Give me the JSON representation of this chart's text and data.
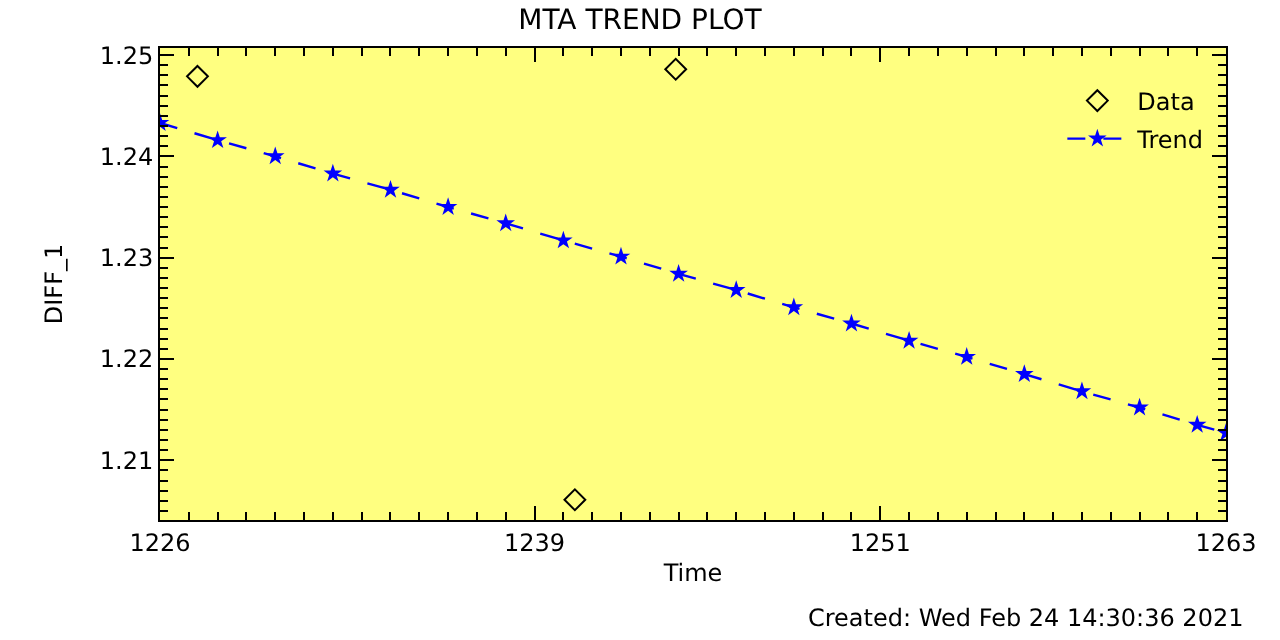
{
  "chart_data": {
    "type": "scatter",
    "title": "MTA TREND PLOT",
    "xlabel": "Time",
    "ylabel": "DIFF_1",
    "annotations": [
      "Created: Wed Feb 24 14:30:36 2021"
    ],
    "xlim": [
      1226,
      1263
    ],
    "xticks": [
      1226,
      1239,
      1251,
      1263
    ],
    "ylim": [
      1.2041,
      1.2507
    ],
    "yticks": [
      1.21,
      1.22,
      1.23,
      1.24,
      1.25
    ],
    "grid": false,
    "legend": "top right",
    "series": [
      {
        "name": "Data",
        "color": "#000000",
        "marker": "diamond",
        "x": [
          1227.3,
          1240.4,
          1243.9
        ],
        "values": [
          1.2479,
          1.2061,
          1.2486
        ]
      },
      {
        "name": "Trend",
        "type": "line",
        "color": "#0000ff",
        "marker": "star",
        "line_style": "dashed",
        "x": [
          1226,
          1228,
          1230,
          1232,
          1234,
          1236,
          1238,
          1240,
          1242,
          1244,
          1246,
          1248,
          1250,
          1252,
          1254,
          1256,
          1258,
          1260,
          1262,
          1263
        ],
        "values": [
          1.2433,
          1.2416,
          1.24,
          1.2383,
          1.2367,
          1.235,
          1.2334,
          1.2317,
          1.2301,
          1.2284,
          1.2268,
          1.2251,
          1.2235,
          1.2218,
          1.2202,
          1.2185,
          1.2168,
          1.2152,
          1.2135,
          1.2127
        ]
      }
    ]
  }
}
